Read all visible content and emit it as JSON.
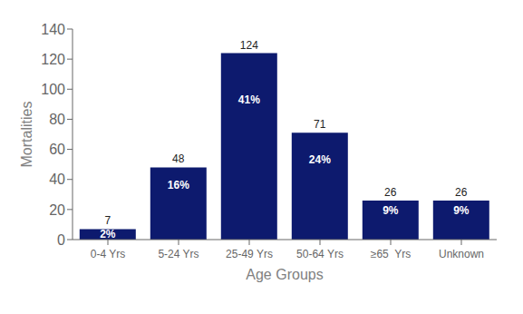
{
  "chart_data": {
    "type": "bar",
    "categories": [
      "0-4 Yrs",
      "5-24 Yrs",
      "25-49 Yrs",
      "50-64 Yrs",
      "≥65  Yrs",
      "Unknown"
    ],
    "values": [
      7,
      48,
      124,
      71,
      26,
      26
    ],
    "percent_labels": [
      "2%",
      "16%",
      "41%",
      "24%",
      "9%",
      "9%"
    ],
    "color": "#0D1A6E",
    "xlabel": "Age Groups",
    "ylabel": "Mortalities",
    "ylim": [
      0,
      140
    ],
    "yticks": [
      0,
      20,
      40,
      60,
      80,
      100,
      120,
      140
    ],
    "grid": false,
    "data_labels": true
  }
}
